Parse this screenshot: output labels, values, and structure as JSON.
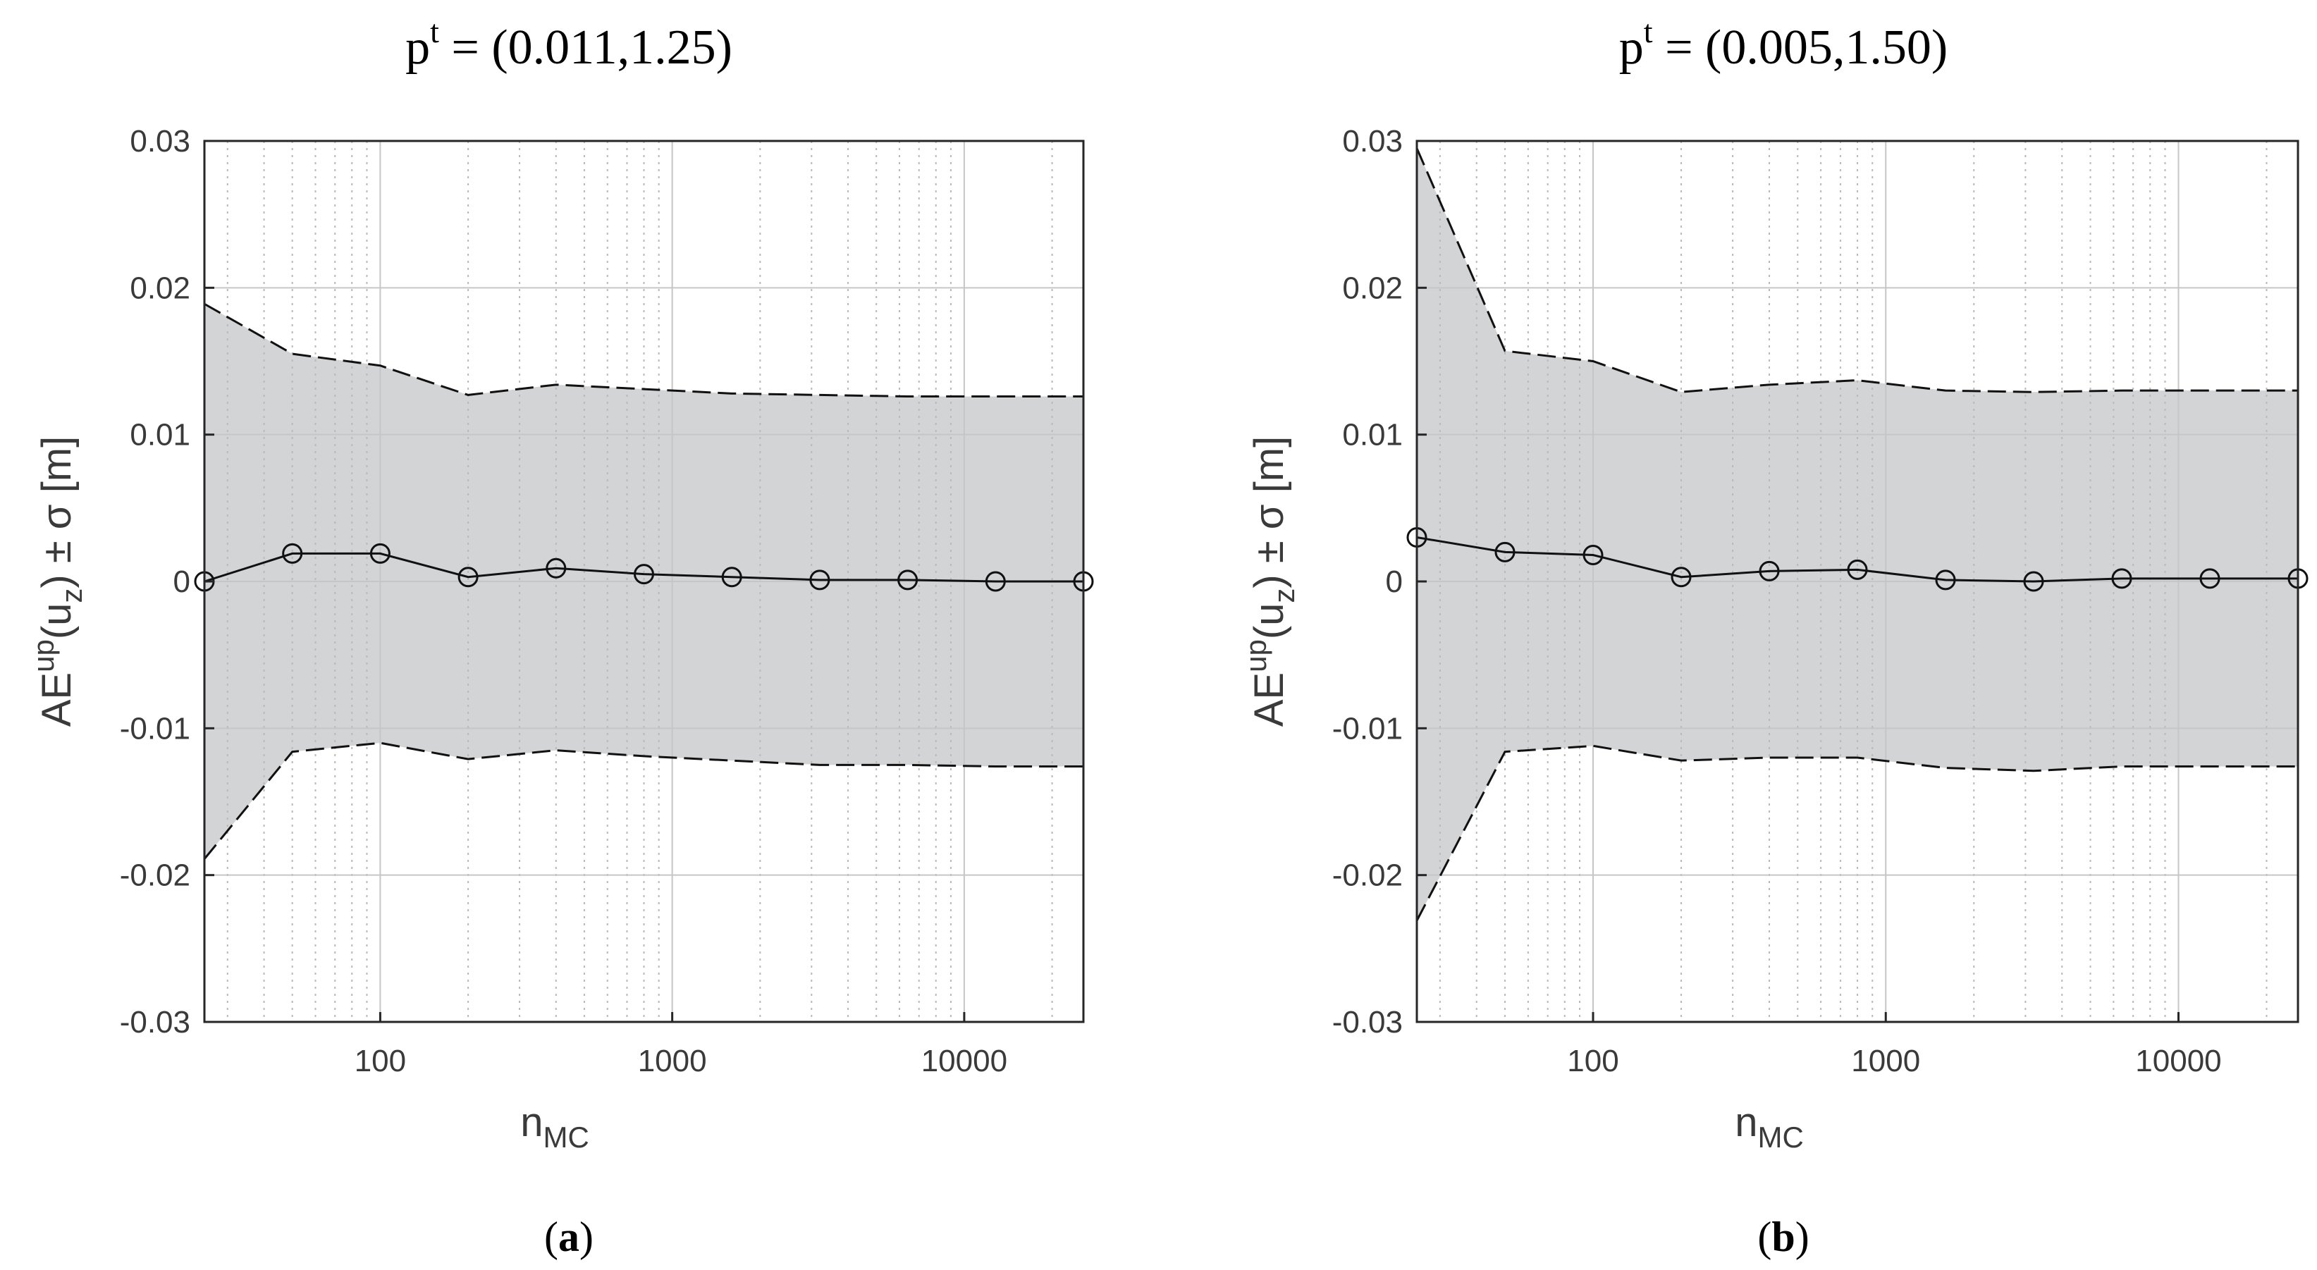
{
  "chart_data": [
    {
      "type": "line",
      "panel_label": "a",
      "title": {
        "base": "p",
        "sup": "t",
        "rest": " = (0.011,1.25)"
      },
      "xlabel": {
        "base": "n",
        "sub": "MC"
      },
      "ylabel": {
        "base": "AE",
        "sup": "up",
        "mid": "(u",
        "sub": "z",
        "rest": ") ± σ [m]"
      },
      "xscale": "log",
      "xlim": [
        25,
        25600
      ],
      "ylim": [
        -0.03,
        0.03
      ],
      "grid": true,
      "xticks": [
        100,
        1000,
        10000
      ],
      "xtick_labels": [
        "100",
        "1000",
        "10000"
      ],
      "yticks": [
        -0.03,
        -0.02,
        -0.01,
        0,
        0.01,
        0.02,
        0.03
      ],
      "ytick_labels": [
        "-0.03",
        "-0.02",
        "-0.01",
        "0",
        "0.01",
        "0.02",
        "0.03"
      ],
      "x": [
        25,
        50,
        100,
        200,
        400,
        800,
        1600,
        3200,
        6400,
        12800,
        25600
      ],
      "series": [
        {
          "name": "AE",
          "style": "solid-circle",
          "values": [
            0.0,
            0.0019,
            0.0019,
            0.0003,
            0.0009,
            0.0005,
            0.0003,
            0.0001,
            0.0001,
            0.0,
            0.0
          ]
        },
        {
          "name": "upper",
          "style": "dashed",
          "values": [
            0.0189,
            0.0155,
            0.0147,
            0.0127,
            0.0134,
            0.0131,
            0.0128,
            0.0127,
            0.0126,
            0.0126,
            0.0126
          ]
        },
        {
          "name": "lower",
          "style": "dashed",
          "values": [
            -0.0189,
            -0.0116,
            -0.011,
            -0.0121,
            -0.0115,
            -0.0119,
            -0.0122,
            -0.0125,
            -0.0125,
            -0.0126,
            -0.0126
          ]
        }
      ]
    },
    {
      "type": "line",
      "panel_label": "b",
      "title": {
        "base": "p",
        "sup": "t",
        "rest": " = (0.005,1.50)"
      },
      "xlabel": {
        "base": "n",
        "sub": "MC"
      },
      "ylabel": {
        "base": "AE",
        "sup": "up",
        "mid": "(u",
        "sub": "z",
        "rest": ") ± σ [m]"
      },
      "xscale": "log",
      "xlim": [
        25,
        25600
      ],
      "ylim": [
        -0.03,
        0.03
      ],
      "grid": true,
      "xticks": [
        100,
        1000,
        10000
      ],
      "xtick_labels": [
        "100",
        "1000",
        "10000"
      ],
      "yticks": [
        -0.03,
        -0.02,
        -0.01,
        0,
        0.01,
        0.02,
        0.03
      ],
      "ytick_labels": [
        "-0.03",
        "-0.02",
        "-0.01",
        "0",
        "0.01",
        "0.02",
        "0.03"
      ],
      "x": [
        25,
        50,
        100,
        200,
        400,
        800,
        1600,
        3200,
        6400,
        12800,
        25600
      ],
      "series": [
        {
          "name": "AE",
          "style": "solid-circle",
          "values": [
            0.003,
            0.002,
            0.0018,
            0.0003,
            0.0007,
            0.0008,
            0.0001,
            0.0,
            0.0002,
            0.0002,
            0.0002
          ]
        },
        {
          "name": "upper",
          "style": "dashed",
          "values": [
            0.0295,
            0.0157,
            0.015,
            0.0129,
            0.0134,
            0.0137,
            0.013,
            0.0129,
            0.013,
            0.013,
            0.013
          ]
        },
        {
          "name": "lower",
          "style": "dashed",
          "values": [
            -0.0231,
            -0.0116,
            -0.0112,
            -0.0122,
            -0.012,
            -0.012,
            -0.0127,
            -0.0129,
            -0.0126,
            -0.0126,
            -0.0126
          ]
        }
      ]
    }
  ]
}
